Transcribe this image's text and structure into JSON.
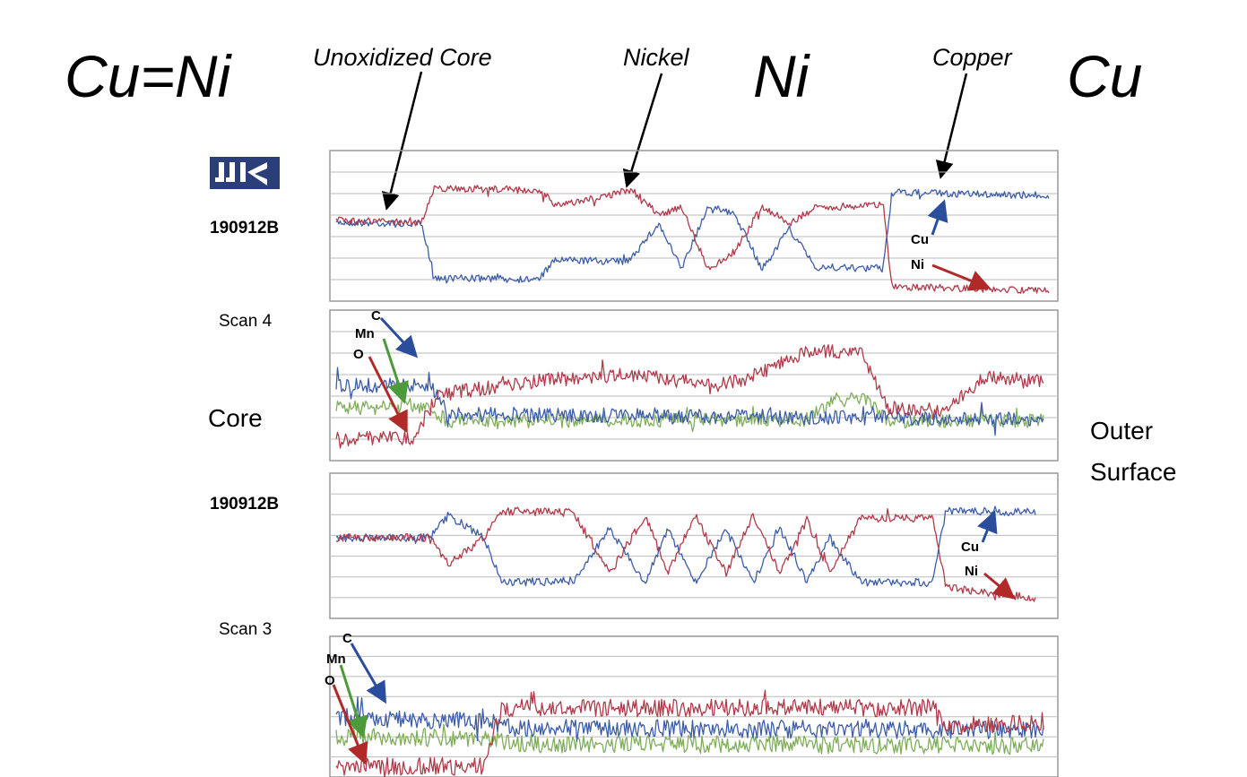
{
  "annotations": {
    "cu_eq_ni": "Cu=Ni",
    "unoxidized_core": "Unoxidized Core",
    "nickel": "Nickel",
    "ni": "Ni",
    "copper": "Copper",
    "cu": "Cu"
  },
  "side_labels": {
    "sample_top": "190912B",
    "scan_4": "Scan 4",
    "core": "Core",
    "sample_bottom": "190912B",
    "scan_3": "Scan 3",
    "outer_surface": [
      "Outer",
      "Surface"
    ]
  },
  "panels": [
    {
      "traces": [
        "Cu",
        "Ni"
      ]
    },
    {
      "traces": [
        "C",
        "Mn",
        "O"
      ]
    },
    {
      "traces": [
        "Cu",
        "Ni"
      ]
    },
    {
      "traces": [
        "C",
        "Mn",
        "O"
      ]
    }
  ]
}
